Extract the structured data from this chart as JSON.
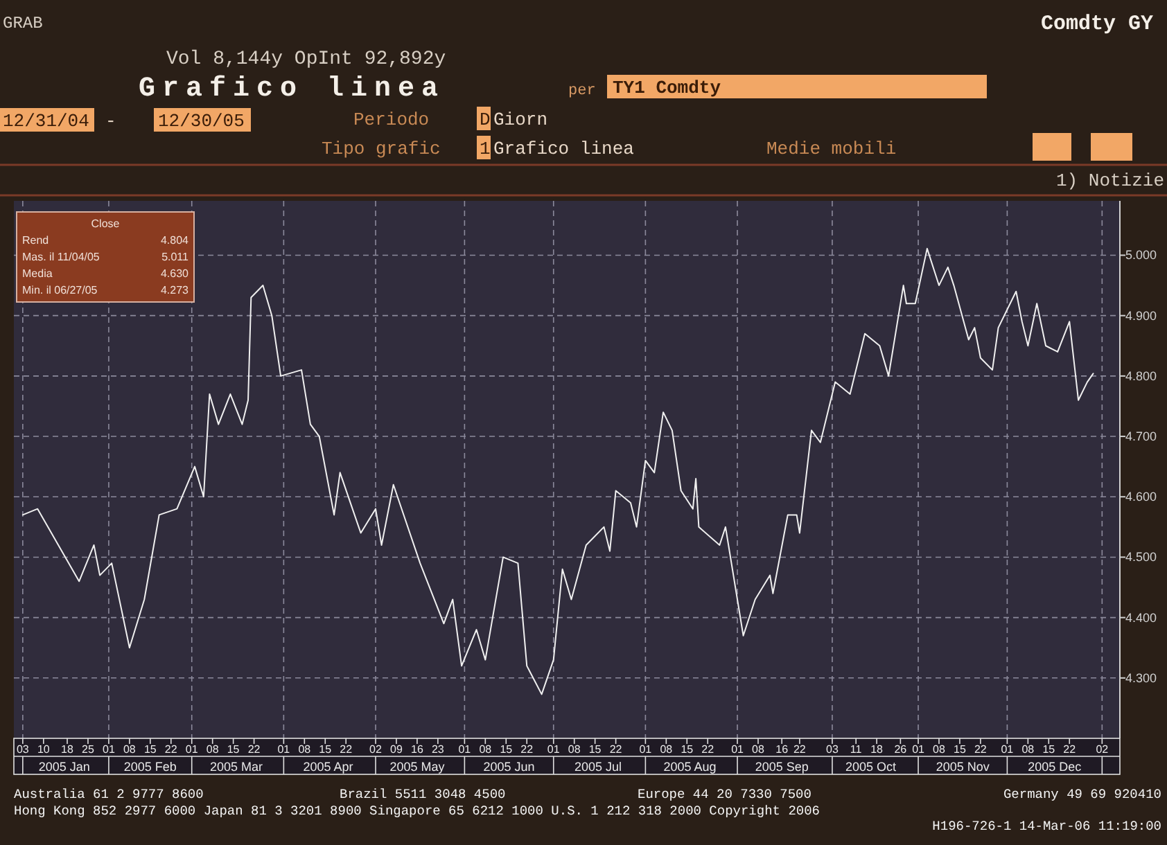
{
  "chart_data": {
    "type": "line",
    "title": "Grafico linea",
    "subtitle": "Vol 8,144y OpInt 92,892y",
    "annotations": [
      "GRAB",
      "Comdty GY",
      "per",
      "TY1 Comdty",
      "12/31/04",
      "-",
      "12/30/05",
      "Periodo",
      "D",
      "Giorn",
      "Tipo grafic",
      "1",
      "Grafico linea",
      "Medie mobili",
      "1) Notizie",
      "Close",
      "Rend",
      "4.804",
      "Mas. il 11/04/05",
      "5.011",
      "Media",
      "4.630",
      "Min. il 06/27/05",
      "4.273",
      "Australia 61 2 9777 8600",
      "Brazil 5511 3048 4500",
      "Europe 44 20 7330 7500",
      "Germany 49 69 920410",
      "Hong Kong 852 2977 6000 Japan 81 3 3201 8900 Singapore 65 6212 1000 U.S. 1 212 318 2000 Copyright 2006",
      "H196-726-1 14-Mar-06 11:19:00"
    ],
    "x": [
      "2005-01-03",
      "2005-01-08",
      "2005-01-15",
      "2005-01-22",
      "2005-01-27",
      "2005-01-29",
      "2005-02-02",
      "2005-02-08",
      "2005-02-13",
      "2005-02-18",
      "2005-02-24",
      "2005-03-02",
      "2005-03-05",
      "2005-03-07",
      "2005-03-10",
      "2005-03-14",
      "2005-03-18",
      "2005-03-20",
      "2005-03-21",
      "2005-03-25",
      "2005-03-28",
      "2005-03-31",
      "2005-04-07",
      "2005-04-10",
      "2005-04-13",
      "2005-04-18",
      "2005-04-20",
      "2005-04-27",
      "2005-05-02",
      "2005-05-04",
      "2005-05-08",
      "2005-05-17",
      "2005-05-25",
      "2005-05-28",
      "2005-05-31",
      "2005-06-05",
      "2005-06-08",
      "2005-06-14",
      "2005-06-19",
      "2005-06-22",
      "2005-06-27",
      "2005-07-01",
      "2005-07-04",
      "2005-07-07",
      "2005-07-12",
      "2005-07-18",
      "2005-07-20",
      "2005-07-22",
      "2005-07-27",
      "2005-07-29",
      "2005-08-01",
      "2005-08-04",
      "2005-08-07",
      "2005-08-10",
      "2005-08-13",
      "2005-08-17",
      "2005-08-18",
      "2005-08-19",
      "2005-08-26",
      "2005-08-28",
      "2005-09-03",
      "2005-09-07",
      "2005-09-12",
      "2005-09-13",
      "2005-09-18",
      "2005-09-21",
      "2005-09-22",
      "2005-09-26",
      "2005-09-29",
      "2005-10-04",
      "2005-10-09",
      "2005-10-14",
      "2005-10-19",
      "2005-10-22",
      "2005-10-27",
      "2005-10-28",
      "2005-10-31",
      "2005-11-04",
      "2005-11-08",
      "2005-11-11",
      "2005-11-13",
      "2005-11-18",
      "2005-11-20",
      "2005-11-22",
      "2005-11-26",
      "2005-11-28",
      "2005-12-04",
      "2005-12-06",
      "2005-12-08",
      "2005-12-11",
      "2005-12-14",
      "2005-12-18",
      "2005-12-22",
      "2005-12-25",
      "2005-12-28",
      "2005-12-30"
    ],
    "series": [
      {
        "color": "#f0f0f0",
        "values": [
          4.57,
          4.58,
          4.52,
          4.46,
          4.52,
          4.47,
          4.49,
          4.35,
          4.43,
          4.57,
          4.58,
          4.65,
          4.6,
          4.77,
          4.72,
          4.77,
          4.72,
          4.76,
          4.93,
          4.95,
          4.9,
          4.8,
          4.81,
          4.72,
          4.7,
          4.57,
          4.64,
          4.54,
          4.58,
          4.52,
          4.62,
          4.49,
          4.39,
          4.43,
          4.32,
          4.38,
          4.33,
          4.5,
          4.49,
          4.32,
          4.273,
          4.33,
          4.48,
          4.43,
          4.52,
          4.55,
          4.51,
          4.61,
          4.59,
          4.55,
          4.66,
          4.64,
          4.74,
          4.71,
          4.61,
          4.58,
          4.63,
          4.55,
          4.52,
          4.55,
          4.37,
          4.43,
          4.47,
          4.44,
          4.57,
          4.57,
          4.54,
          4.71,
          4.69,
          4.79,
          4.77,
          4.87,
          4.85,
          4.8,
          4.95,
          4.92,
          4.92,
          5.011,
          4.95,
          4.98,
          4.95,
          4.86,
          4.88,
          4.83,
          4.81,
          4.88,
          4.94,
          4.89,
          4.85,
          4.92,
          4.85,
          4.84,
          4.89,
          4.76,
          4.79,
          4.804
        ]
      }
    ],
    "xlim": [
      "2004-12-31",
      "2006-01-08"
    ],
    "xticks": [
      {
        "value": "2005-01-03",
        "label": "03"
      },
      {
        "value": "2005-01-10",
        "label": "10"
      },
      {
        "value": "2005-01-18",
        "label": "18"
      },
      {
        "value": "2005-01-25",
        "label": "25"
      },
      {
        "value": "2005-02-01",
        "label": "01"
      },
      {
        "value": "2005-02-08",
        "label": "08"
      },
      {
        "value": "2005-02-15",
        "label": "15"
      },
      {
        "value": "2005-02-22",
        "label": "22"
      },
      {
        "value": "2005-03-01",
        "label": "01"
      },
      {
        "value": "2005-03-08",
        "label": "08"
      },
      {
        "value": "2005-03-15",
        "label": "15"
      },
      {
        "value": "2005-03-22",
        "label": "22"
      },
      {
        "value": "2005-04-01",
        "label": "01"
      },
      {
        "value": "2005-04-08",
        "label": "08"
      },
      {
        "value": "2005-04-15",
        "label": "15"
      },
      {
        "value": "2005-04-22",
        "label": "22"
      },
      {
        "value": "2005-05-02",
        "label": "02"
      },
      {
        "value": "2005-05-09",
        "label": "09"
      },
      {
        "value": "2005-05-16",
        "label": "16"
      },
      {
        "value": "2005-05-23",
        "label": "23"
      },
      {
        "value": "2005-06-01",
        "label": "01"
      },
      {
        "value": "2005-06-08",
        "label": "08"
      },
      {
        "value": "2005-06-15",
        "label": "15"
      },
      {
        "value": "2005-06-22",
        "label": "22"
      },
      {
        "value": "2005-07-01",
        "label": "01"
      },
      {
        "value": "2005-07-08",
        "label": "08"
      },
      {
        "value": "2005-07-15",
        "label": "15"
      },
      {
        "value": "2005-07-22",
        "label": "22"
      },
      {
        "value": "2005-08-01",
        "label": "01"
      },
      {
        "value": "2005-08-08",
        "label": "08"
      },
      {
        "value": "2005-08-15",
        "label": "15"
      },
      {
        "value": "2005-08-22",
        "label": "22"
      },
      {
        "value": "2005-09-01",
        "label": "01"
      },
      {
        "value": "2005-09-08",
        "label": "08"
      },
      {
        "value": "2005-09-16",
        "label": "16"
      },
      {
        "value": "2005-09-22",
        "label": "22"
      },
      {
        "value": "2005-10-03",
        "label": "03"
      },
      {
        "value": "2005-10-11",
        "label": "11"
      },
      {
        "value": "2005-10-18",
        "label": "18"
      },
      {
        "value": "2005-10-26",
        "label": "26"
      },
      {
        "value": "2005-11-01",
        "label": "01"
      },
      {
        "value": "2005-11-08",
        "label": "08"
      },
      {
        "value": "2005-11-15",
        "label": "15"
      },
      {
        "value": "2005-11-22",
        "label": "22"
      },
      {
        "value": "2005-12-01",
        "label": "01"
      },
      {
        "value": "2005-12-08",
        "label": "08"
      },
      {
        "value": "2005-12-15",
        "label": "15"
      },
      {
        "value": "2005-12-22",
        "label": "22"
      },
      {
        "value": "2006-01-02",
        "label": "02"
      }
    ],
    "x2lim": [
      "2004-12-31",
      "2006-01-08"
    ],
    "x2ticks": [
      {
        "value": "2005-01-17",
        "label": "2005 Jan"
      },
      {
        "value": "2005-02-15",
        "label": "2005 Feb"
      },
      {
        "value": "2005-03-16",
        "label": "2005 Mar"
      },
      {
        "value": "2005-04-16",
        "label": "2005 Apr"
      },
      {
        "value": "2005-05-16",
        "label": "2005 May"
      },
      {
        "value": "2005-06-16",
        "label": "2005 Jun"
      },
      {
        "value": "2005-07-16",
        "label": "2005 Jul"
      },
      {
        "value": "2005-08-16",
        "label": "2005 Aug"
      },
      {
        "value": "2005-09-16",
        "label": "2005 Sep"
      },
      {
        "value": "2005-10-16",
        "label": "2005 Oct"
      },
      {
        "value": "2005-11-16",
        "label": "2005 Nov"
      },
      {
        "value": "2005-12-17",
        "label": "2005 Dec"
      }
    ],
    "ylim": [
      4.2,
      5.09
    ],
    "yticks": [
      {
        "value": 4.3,
        "label": "4.300"
      },
      {
        "value": 4.4,
        "label": "4.400"
      },
      {
        "value": 4.5,
        "label": "4.500"
      },
      {
        "value": 4.6,
        "label": "4.600"
      },
      {
        "value": 4.7,
        "label": "4.700"
      },
      {
        "value": 4.8,
        "label": "4.800"
      },
      {
        "value": 4.9,
        "label": "4.900"
      },
      {
        "value": 5.0,
        "label": "5.000"
      }
    ],
    "grid": true
  }
}
